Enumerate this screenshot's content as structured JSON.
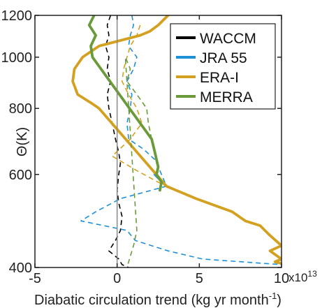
{
  "chart_data": {
    "type": "line",
    "xlabel": "Diabatic circulation trend (kg yr month",
    "xlabel_sup": "-1",
    "xlabel_end": ")",
    "ylabel": "Θ(K)",
    "x_multiplier": "x10",
    "x_multiplier_exp": "13",
    "xlim": [
      -5,
      10
    ],
    "ylim": [
      400,
      1200
    ],
    "y_scale": "log",
    "xticks": [
      -5,
      0,
      5,
      10
    ],
    "xtick_labels": [
      "-5",
      "0",
      "5",
      "10"
    ],
    "yticks": [
      400,
      600,
      800,
      1000,
      1200
    ],
    "ytick_labels": [
      "400",
      "600",
      "800",
      "1000",
      "1200"
    ],
    "grid": false,
    "legend_position": "top-right",
    "zero_line": true,
    "colors": {
      "WACCM": "#000000",
      "JRA 55": "#1f8fd6",
      "ERA-I": "#d4a020",
      "MERRA": "#6a9a3a",
      "zero_line": "#888888"
    },
    "series": [
      {
        "name": "WACCM",
        "dashed_points": [
          [
            -0.4,
            1200
          ],
          [
            -0.6,
            1150
          ],
          [
            -0.5,
            1100
          ],
          [
            -0.7,
            1050
          ],
          [
            -0.5,
            1000
          ],
          [
            -0.6,
            950
          ],
          [
            -0.4,
            900
          ],
          [
            -0.6,
            850
          ],
          [
            -0.5,
            800
          ],
          [
            -0.3,
            750
          ],
          [
            -0.1,
            700
          ],
          [
            0.1,
            660
          ],
          [
            0.2,
            630
          ],
          [
            0.1,
            600
          ],
          [
            0,
            560
          ],
          [
            0.1,
            530
          ],
          [
            0.3,
            500
          ],
          [
            0.2,
            470
          ],
          [
            -0.1,
            450
          ],
          [
            -0.5,
            430
          ],
          [
            0.1,
            415
          ],
          [
            0.3,
            405
          ],
          [
            0.7,
            400
          ]
        ],
        "solid_points": []
      },
      {
        "name": "JRA 55",
        "dashed_points": [
          [
            0.9,
            1200
          ],
          [
            1,
            1150
          ],
          [
            0.8,
            1100
          ],
          [
            0.7,
            1050
          ],
          [
            1.2,
            1000
          ],
          [
            1,
            950
          ],
          [
            0.6,
            900
          ],
          [
            0.9,
            850
          ],
          [
            0.8,
            800
          ],
          [
            0.6,
            750
          ],
          [
            0.7,
            700
          ],
          [
            1.6,
            670
          ],
          [
            2.3,
            640
          ],
          [
            2.6,
            610
          ],
          [
            3,
            570
          ],
          [
            0.2,
            540
          ],
          [
            -1.3,
            510
          ],
          [
            -2.2,
            490
          ],
          [
            -0.8,
            480
          ],
          [
            0.6,
            470
          ],
          [
            1.1,
            450
          ],
          [
            3.1,
            430
          ],
          [
            5.2,
            415
          ],
          [
            10,
            405
          ]
        ],
        "solid_points": [
          [
            2.3,
            600
          ],
          [
            3,
            570
          ]
        ]
      },
      {
        "name": "ERA-I",
        "dashed_points": [
          [
            1.4,
            1150
          ],
          [
            1.2,
            1100
          ],
          [
            0.8,
            1050
          ],
          [
            0.6,
            1000
          ],
          [
            0.4,
            950
          ],
          [
            0.3,
            900
          ],
          [
            0.7,
            850
          ],
          [
            1.2,
            800
          ],
          [
            1.5,
            750
          ],
          [
            0.8,
            700
          ],
          [
            -0.3,
            650
          ],
          [
            1.2,
            610
          ],
          [
            2.5,
            580
          ],
          [
            3,
            570
          ]
        ],
        "solid_points": [
          [
            3.1,
            1200
          ],
          [
            2.5,
            1150
          ],
          [
            2,
            1120
          ],
          [
            1.4,
            1100
          ],
          [
            -1.1,
            1050
          ],
          [
            -2.1,
            1000
          ],
          [
            -2.6,
            950
          ],
          [
            -2.7,
            900
          ],
          [
            -2.4,
            850
          ],
          [
            -1.6,
            820
          ],
          [
            -1.1,
            800
          ],
          [
            3,
            570
          ],
          [
            4.8,
            540
          ],
          [
            7,
            510
          ],
          [
            7.8,
            490
          ],
          [
            8.7,
            480
          ],
          [
            9.3,
            460
          ],
          [
            10,
            440
          ],
          [
            9.3,
            430
          ],
          [
            10,
            415
          ],
          [
            9.6,
            410
          ],
          [
            10,
            407
          ]
        ]
      },
      {
        "name": "MERRA",
        "dashed_points": [
          [
            2.1,
            700
          ],
          [
            1.9,
            750
          ],
          [
            1.8,
            800
          ],
          [
            1.2,
            850
          ],
          [
            0.6,
            900
          ],
          [
            0.8,
            950
          ],
          [
            0.5,
            1000
          ],
          [
            1.2,
            470
          ],
          [
            1,
            440
          ],
          [
            0.8,
            420
          ],
          [
            0.6,
            400
          ]
        ],
        "solid_points": [
          [
            -1.4,
            1200
          ],
          [
            -1.7,
            1150
          ],
          [
            -1.3,
            1100
          ],
          [
            -1.6,
            1050
          ],
          [
            -1.5,
            1000
          ],
          [
            2.1,
            700
          ],
          [
            2.3,
            660
          ],
          [
            2.5,
            620
          ],
          [
            2.4,
            600
          ],
          [
            2.7,
            580
          ],
          [
            2.6,
            560
          ]
        ]
      }
    ]
  }
}
